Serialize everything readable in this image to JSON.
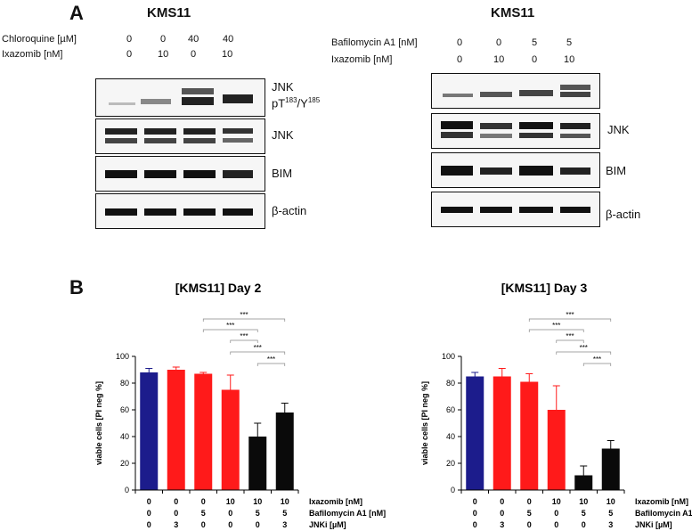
{
  "panelA": {
    "letter": "A",
    "left": {
      "title": "KMS11",
      "treatments": [
        {
          "label": "Chloroquine [µM]",
          "values": [
            "0",
            "0",
            "40",
            "40"
          ]
        },
        {
          "label": "Ixazomib [nM]",
          "values": [
            "0",
            "10",
            "0",
            "10"
          ]
        }
      ],
      "bands": [
        "JNK",
        "pT183/Y185",
        "JNK",
        "BIM",
        "β-actin"
      ]
    },
    "right": {
      "title": "KMS11",
      "treatments": [
        {
          "label": "Bafilomycin A1 [nM]",
          "values": [
            "0",
            "0",
            "5",
            "5"
          ]
        },
        {
          "label": "Ixazomib [nM]",
          "values": [
            "0",
            "10",
            "0",
            "10"
          ]
        }
      ],
      "bands": [
        "JNK",
        "BIM",
        "β-actin"
      ]
    }
  },
  "panelB": {
    "letter": "B",
    "conditions": [
      {
        "label": "Ixazomib [nM]",
        "values": [
          "0",
          "0",
          "0",
          "10",
          "10",
          "10"
        ]
      },
      {
        "label": "Bafilomycin A1 [nM]",
        "values": [
          "0",
          "0",
          "5",
          "0",
          "5",
          "5"
        ]
      },
      {
        "label": "JNKi [µM]",
        "values": [
          "0",
          "3",
          "0",
          "0",
          "0",
          "3"
        ]
      }
    ]
  },
  "chart_data": [
    {
      "type": "bar",
      "title": "[KMS11] Day 2",
      "ylabel": "viable cells  [PI neg %]",
      "ylim": [
        0,
        100
      ],
      "yticks": [
        "0",
        "20",
        "40",
        "60",
        "80",
        "100"
      ],
      "values": [
        88,
        90,
        87,
        75,
        40,
        58
      ],
      "errors": [
        3,
        2,
        1,
        11,
        10,
        7
      ],
      "colors": [
        "#1c1c8c",
        "#ff1a1a",
        "#ff1a1a",
        "#ff1a1a",
        "#0a0a0a",
        "#0a0a0a"
      ],
      "significance": [
        {
          "from": 2,
          "to": 5,
          "label": "***"
        },
        {
          "from": 2,
          "to": 4,
          "label": "***"
        },
        {
          "from": 3,
          "to": 4,
          "label": "***"
        },
        {
          "from": 3,
          "to": 5,
          "label": "***"
        },
        {
          "from": 4,
          "to": 5,
          "label": "***"
        }
      ]
    },
    {
      "type": "bar",
      "title": "[KMS11] Day 3",
      "ylabel": "viable cells  [PI neg %]",
      "ylim": [
        0,
        100
      ],
      "yticks": [
        "0",
        "20",
        "40",
        "60",
        "80",
        "100"
      ],
      "values": [
        85,
        85,
        81,
        60,
        11,
        31
      ],
      "errors": [
        3,
        6,
        6,
        18,
        7,
        6
      ],
      "colors": [
        "#1c1c8c",
        "#ff1a1a",
        "#ff1a1a",
        "#ff1a1a",
        "#0a0a0a",
        "#0a0a0a"
      ],
      "significance": [
        {
          "from": 2,
          "to": 5,
          "label": "***"
        },
        {
          "from": 2,
          "to": 4,
          "label": "***"
        },
        {
          "from": 3,
          "to": 4,
          "label": "***"
        },
        {
          "from": 3,
          "to": 5,
          "label": "***"
        },
        {
          "from": 4,
          "to": 5,
          "label": "***"
        }
      ]
    }
  ]
}
